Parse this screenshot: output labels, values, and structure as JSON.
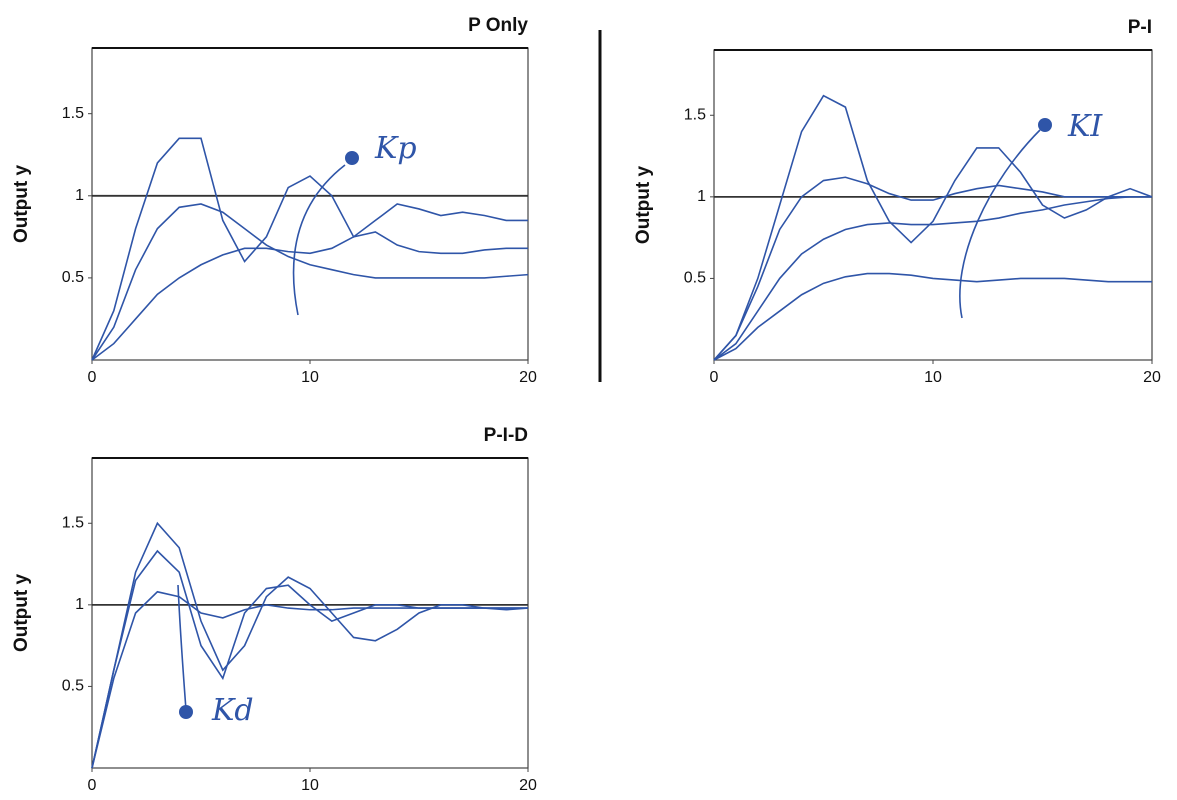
{
  "chart_data": [
    {
      "type": "line",
      "title": "P Only",
      "ylabel": "Output y",
      "annotation": "Kp",
      "x": [
        0,
        1,
        2,
        3,
        4,
        5,
        6,
        7,
        8,
        9,
        10,
        11,
        12,
        13,
        14,
        15,
        16,
        17,
        18,
        19,
        20
      ],
      "xlim": [
        0,
        20
      ],
      "xticks": [
        0,
        10,
        20
      ],
      "ylim": [
        0,
        1.9
      ],
      "yticks": [
        0.5,
        1,
        1.5
      ],
      "series": [
        {
          "color": "#333333",
          "values": [
            1,
            1,
            1,
            1,
            1,
            1,
            1,
            1,
            1,
            1,
            1,
            1,
            1,
            1,
            1,
            1,
            1,
            1,
            1,
            1,
            1
          ]
        },
        {
          "color": "#2f55a8",
          "values": [
            0,
            0.3,
            0.8,
            1.2,
            1.35,
            1.35,
            0.85,
            0.6,
            0.75,
            1.05,
            1.12,
            1.0,
            0.75,
            0.85,
            0.95,
            0.92,
            0.88,
            0.9,
            0.88,
            0.85,
            0.85
          ]
        },
        {
          "color": "#2f55a8",
          "values": [
            0,
            0.2,
            0.55,
            0.8,
            0.93,
            0.95,
            0.9,
            0.8,
            0.7,
            0.63,
            0.58,
            0.55,
            0.52,
            0.5,
            0.5,
            0.5,
            0.5,
            0.5,
            0.5,
            0.51,
            0.52
          ]
        },
        {
          "color": "#2f55a8",
          "values": [
            0,
            0.1,
            0.25,
            0.4,
            0.5,
            0.58,
            0.64,
            0.68,
            0.68,
            0.66,
            0.65,
            0.68,
            0.75,
            0.78,
            0.7,
            0.66,
            0.65,
            0.65,
            0.67,
            0.68,
            0.68
          ]
        }
      ]
    },
    {
      "type": "line",
      "title": "P-I",
      "ylabel": "Output y",
      "annotation": "KI",
      "x": [
        0,
        1,
        2,
        3,
        4,
        5,
        6,
        7,
        8,
        9,
        10,
        11,
        12,
        13,
        14,
        15,
        16,
        17,
        18,
        19,
        20
      ],
      "xlim": [
        0,
        20
      ],
      "xticks": [
        0,
        10,
        20
      ],
      "ylim": [
        0,
        1.9
      ],
      "yticks": [
        0.5,
        1,
        1.5
      ],
      "series": [
        {
          "color": "#333333",
          "values": [
            1,
            1,
            1,
            1,
            1,
            1,
            1,
            1,
            1,
            1,
            1,
            1,
            1,
            1,
            1,
            1,
            1,
            1,
            1,
            1,
            1
          ]
        },
        {
          "color": "#2f55a8",
          "values": [
            0,
            0.15,
            0.5,
            0.95,
            1.4,
            1.62,
            1.55,
            1.1,
            0.85,
            0.72,
            0.85,
            1.1,
            1.3,
            1.3,
            1.15,
            0.95,
            0.87,
            0.92,
            1.0,
            1.05,
            1.0
          ]
        },
        {
          "color": "#2f55a8",
          "values": [
            0,
            0.15,
            0.45,
            0.8,
            1.0,
            1.1,
            1.12,
            1.08,
            1.02,
            0.98,
            0.98,
            1.02,
            1.05,
            1.07,
            1.05,
            1.03,
            1.0,
            1.0,
            1.0,
            1.0,
            1.0
          ]
        },
        {
          "color": "#2f55a8",
          "values": [
            0,
            0.1,
            0.3,
            0.5,
            0.65,
            0.74,
            0.8,
            0.83,
            0.84,
            0.83,
            0.83,
            0.84,
            0.85,
            0.87,
            0.9,
            0.92,
            0.95,
            0.97,
            0.99,
            1.0,
            1.0
          ]
        },
        {
          "color": "#2f55a8",
          "values": [
            0,
            0.07,
            0.2,
            0.3,
            0.4,
            0.47,
            0.51,
            0.53,
            0.53,
            0.52,
            0.5,
            0.49,
            0.48,
            0.49,
            0.5,
            0.5,
            0.5,
            0.49,
            0.48,
            0.48,
            0.48
          ]
        }
      ]
    },
    {
      "type": "line",
      "title": "P-I-D",
      "ylabel": "Output y",
      "annotation": "Kd",
      "x": [
        0,
        1,
        2,
        3,
        4,
        5,
        6,
        7,
        8,
        9,
        10,
        11,
        12,
        13,
        14,
        15,
        16,
        17,
        18,
        19,
        20
      ],
      "xlim": [
        0,
        20
      ],
      "xticks": [
        0,
        10,
        20
      ],
      "ylim": [
        0,
        1.9
      ],
      "yticks": [
        0.5,
        1,
        1.5
      ],
      "series": [
        {
          "color": "#333333",
          "values": [
            1,
            1,
            1,
            1,
            1,
            1,
            1,
            1,
            1,
            1,
            1,
            1,
            1,
            1,
            1,
            1,
            1,
            1,
            1,
            1,
            1
          ]
        },
        {
          "color": "#2f55a8",
          "values": [
            0,
            0.6,
            1.2,
            1.5,
            1.35,
            0.9,
            0.6,
            0.75,
            1.05,
            1.17,
            1.1,
            0.95,
            0.8,
            0.78,
            0.85,
            0.95,
            1.0,
            1.0,
            0.98,
            0.97,
            0.98
          ]
        },
        {
          "color": "#2f55a8",
          "values": [
            0,
            0.6,
            1.15,
            1.33,
            1.2,
            0.75,
            0.55,
            0.95,
            1.1,
            1.12,
            1.0,
            0.9,
            0.95,
            1.0,
            1.0,
            0.98,
            0.98,
            0.98,
            0.98,
            0.98,
            0.98
          ]
        },
        {
          "color": "#2f55a8",
          "values": [
            0,
            0.55,
            0.95,
            1.08,
            1.05,
            0.95,
            0.92,
            0.97,
            1.0,
            0.98,
            0.97,
            0.97,
            0.98,
            0.98,
            0.98,
            0.98,
            0.98,
            0.98,
            0.98,
            0.98,
            0.98
          ]
        }
      ]
    }
  ]
}
